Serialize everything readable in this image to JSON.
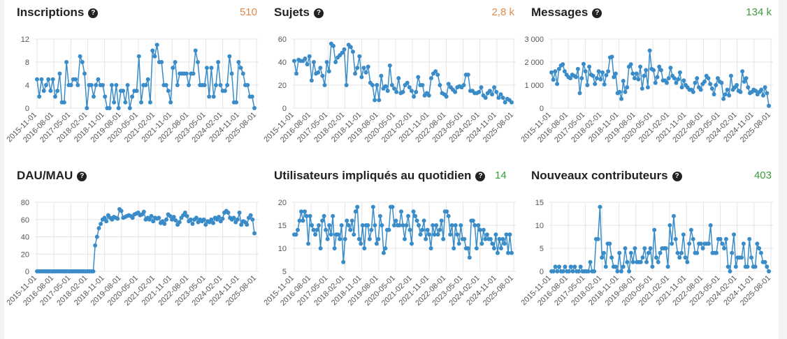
{
  "colors": {
    "line": "#3a8cc9",
    "point": "#3a8cc9",
    "orange_count": "#e08a4a",
    "green_count": "#3b9b3b",
    "text": "#222222"
  },
  "help_icon": {
    "name": "question-circle-icon",
    "glyph": "?"
  },
  "x_tick_labels": [
    "2015-11-01",
    "2016-08-01",
    "2017-05-01",
    "2018-02-01",
    "2018-11-01",
    "2019-08-01",
    "2020-05-01",
    "2021-02-01",
    "2021-11-01",
    "2022-08-01",
    "2023-05-01",
    "2024-02-01",
    "2024-11-01",
    "2025-08-01"
  ],
  "panels": [
    {
      "title": "Inscriptions",
      "count": "510",
      "count_color": "#e08a4a"
    },
    {
      "title": "Sujets",
      "count": "2,8 k",
      "count_color": "#e08a4a"
    },
    {
      "title": "Messages",
      "count": "134 k",
      "count_color": "#3b9b3b"
    },
    {
      "title": "DAU/MAU",
      "count": "",
      "count_color": "#3b9b3b"
    },
    {
      "title": "Utilisateurs impliqués au quotidien",
      "count": "14",
      "count_color": "#3b9b3b"
    },
    {
      "title": "Nouveaux contributeurs",
      "count": "403",
      "count_color": "#3b9b3b"
    }
  ],
  "chart_data": [
    {
      "type": "line",
      "title": "Inscriptions",
      "ylim": [
        0,
        12
      ],
      "yticks": [
        "0",
        "4",
        "8",
        "12"
      ],
      "series": [
        {
          "values": [
            5,
            2,
            5,
            3,
            4,
            5,
            3,
            5,
            2,
            3,
            6,
            1,
            1,
            8,
            4,
            4,
            5,
            5,
            4,
            9,
            8,
            6,
            0,
            4,
            4,
            2,
            4,
            5,
            4,
            4,
            2,
            0,
            0,
            4,
            1,
            4,
            0,
            3,
            3,
            1,
            4,
            0,
            2,
            3,
            3,
            9,
            1,
            4,
            4,
            5,
            1,
            10,
            9,
            11,
            8,
            8,
            4,
            4,
            3,
            1,
            7,
            8,
            4,
            6,
            6,
            6,
            6,
            4,
            6,
            6,
            10,
            8,
            4,
            4,
            4,
            7,
            2,
            7,
            2,
            4,
            8,
            4,
            3,
            3,
            4,
            9,
            6,
            1,
            1,
            8,
            7,
            6,
            4,
            4,
            2,
            2,
            0
          ]
        }
      ]
    },
    {
      "type": "line",
      "title": "Sujets",
      "ylim": [
        0,
        60
      ],
      "yticks": [
        "0",
        "20",
        "40",
        "60"
      ],
      "series": [
        {
          "values": [
            41,
            30,
            42,
            41,
            41,
            43,
            38,
            45,
            24,
            40,
            30,
            31,
            35,
            28,
            20,
            40,
            32,
            56,
            54,
            40,
            44,
            46,
            48,
            51,
            20,
            55,
            53,
            49,
            30,
            35,
            45,
            27,
            35,
            31,
            36,
            22,
            20,
            7,
            20,
            7,
            28,
            17,
            19,
            15,
            37,
            20,
            17,
            14,
            26,
            13,
            14,
            20,
            22,
            18,
            15,
            10,
            14,
            27,
            20,
            20,
            11,
            13,
            11,
            26,
            30,
            32,
            29,
            20,
            13,
            12,
            10,
            21,
            18,
            16,
            14,
            18,
            19,
            18,
            20,
            29,
            29,
            15,
            15,
            13,
            13,
            14,
            18,
            11,
            9,
            13,
            15,
            12,
            18,
            14,
            9,
            12,
            9,
            5,
            8,
            7,
            5
          ]
        }
      ]
    },
    {
      "type": "line",
      "title": "Messages",
      "ylim": [
        0,
        3000
      ],
      "yticks": [
        "0",
        "1 000",
        "2 000",
        "3 000"
      ],
      "series": [
        {
          "values": [
            1550,
            1230,
            1600,
            1050,
            1700,
            1850,
            1900,
            1600,
            1450,
            1350,
            1300,
            1450,
            1400,
            1350,
            1700,
            650,
            1300,
            1920,
            1600,
            1000,
            1800,
            1450,
            1400,
            1050,
            1300,
            1600,
            1250,
            1550,
            1030,
            1430,
            1600,
            2200,
            2230,
            1350,
            1500,
            650,
            700,
            400,
            1180,
            700,
            900,
            1800,
            1900,
            1500,
            1300,
            1500,
            1250,
            1800,
            850,
            1400,
            1650,
            900,
            2500,
            1700,
            1650,
            1100,
            1350,
            1800,
            1650,
            1200,
            1200,
            1100,
            1300,
            1750,
            1400,
            1300,
            1100,
            1250,
            1550,
            900,
            1200,
            1000,
            900,
            800,
            800,
            700,
            1100,
            1300,
            900,
            800,
            1050,
            1150,
            1400,
            1300,
            1050,
            850,
            600,
            1000,
            1300,
            1150,
            1100,
            400,
            600,
            800,
            550,
            1400,
            800,
            900,
            1000,
            750,
            700,
            1600,
            1150,
            1300,
            900,
            650,
            700,
            800,
            750,
            600,
            700,
            800,
            550,
            900,
            650,
            100
          ]
        }
      ]
    },
    {
      "type": "line",
      "title": "DAU/MAU",
      "ylim": [
        0,
        80
      ],
      "yticks": [
        "0",
        "20",
        "40",
        "60",
        "80"
      ],
      "series": [
        {
          "values": [
            0,
            0,
            0,
            0,
            0,
            0,
            0,
            0,
            0,
            0,
            0,
            0,
            0,
            0,
            0,
            0,
            0,
            0,
            0,
            0,
            0,
            0,
            0,
            0,
            0,
            0,
            0,
            0,
            0,
            0,
            0,
            30,
            40,
            50,
            55,
            60,
            62,
            58,
            65,
            62,
            60,
            63,
            62,
            61,
            72,
            70,
            62,
            63,
            64,
            65,
            64,
            62,
            66,
            67,
            68,
            65,
            66,
            69,
            60,
            62,
            60,
            64,
            58,
            62,
            61,
            62,
            56,
            58,
            55,
            60,
            66,
            64,
            60,
            63,
            59,
            54,
            57,
            62,
            65,
            68,
            64,
            58,
            60,
            55,
            60,
            62,
            57,
            60,
            58,
            60,
            54,
            58,
            57,
            60,
            56,
            62,
            60,
            63,
            58,
            61,
            68,
            70,
            68,
            62,
            60,
            62,
            57,
            60,
            68,
            54,
            58,
            57,
            54,
            62,
            65,
            60,
            44
          ]
        }
      ]
    },
    {
      "type": "line",
      "title": "Utilisateurs impliqués au quotidien",
      "ylim": [
        5,
        20
      ],
      "yticks": [
        "5",
        "10",
        "15",
        "20"
      ],
      "series": [
        {
          "values": [
            13,
            13,
            14,
            16,
            18,
            16,
            18,
            17,
            11,
            17,
            15,
            14,
            13,
            14,
            15,
            10,
            16,
            17,
            14,
            12,
            15,
            13,
            17,
            10,
            13,
            13,
            12,
            15,
            7,
            12,
            16,
            15,
            14,
            16,
            13,
            18,
            19,
            12,
            11,
            15,
            10,
            15,
            15,
            12,
            14,
            19,
            15,
            11,
            12,
            17,
            15,
            9,
            10,
            14,
            14,
            19,
            19,
            15,
            16,
            15,
            15,
            18,
            15,
            12,
            15,
            17,
            14,
            11,
            18,
            17,
            16,
            15,
            13,
            14,
            16,
            12,
            14,
            13,
            10,
            15,
            13,
            15,
            13,
            14,
            16,
            12,
            18,
            18,
            17,
            13,
            15,
            10,
            15,
            13,
            11,
            15,
            12,
            12,
            10,
            10,
            8,
            16,
            16,
            15,
            10,
            15,
            14,
            11,
            14,
            12,
            13,
            12,
            12,
            11,
            10,
            13,
            9,
            12,
            10,
            12,
            11,
            13,
            9,
            13,
            9
          ]
        }
      ]
    },
    {
      "type": "line",
      "title": "Nouveaux contributeurs",
      "ylim": [
        0,
        15
      ],
      "yticks": [
        "0",
        "5",
        "10",
        "15"
      ],
      "series": [
        {
          "values": [
            0,
            0,
            1,
            0,
            1,
            0,
            0,
            1,
            0,
            0,
            1,
            0,
            1,
            0,
            0,
            1,
            0,
            0,
            0,
            0,
            2,
            0,
            0,
            7,
            7,
            14,
            3,
            4,
            1,
            6,
            6,
            3,
            1,
            1,
            0,
            4,
            0,
            1,
            5,
            2,
            0,
            4,
            2,
            5,
            2,
            2,
            2,
            3,
            5,
            2,
            4,
            5,
            1,
            9,
            3,
            2,
            4,
            5,
            5,
            5,
            1,
            10,
            6,
            12,
            7,
            4,
            3,
            4,
            8,
            3,
            2,
            6,
            9,
            7,
            4,
            4,
            6,
            6,
            5,
            6,
            6,
            6,
            10,
            4,
            4,
            4,
            7,
            7,
            6,
            5,
            7,
            1,
            0,
            4,
            8,
            1,
            3,
            3,
            3,
            6,
            1,
            1,
            7,
            3,
            1,
            1,
            6,
            5,
            4,
            2,
            2,
            1,
            0
          ]
        }
      ]
    }
  ]
}
